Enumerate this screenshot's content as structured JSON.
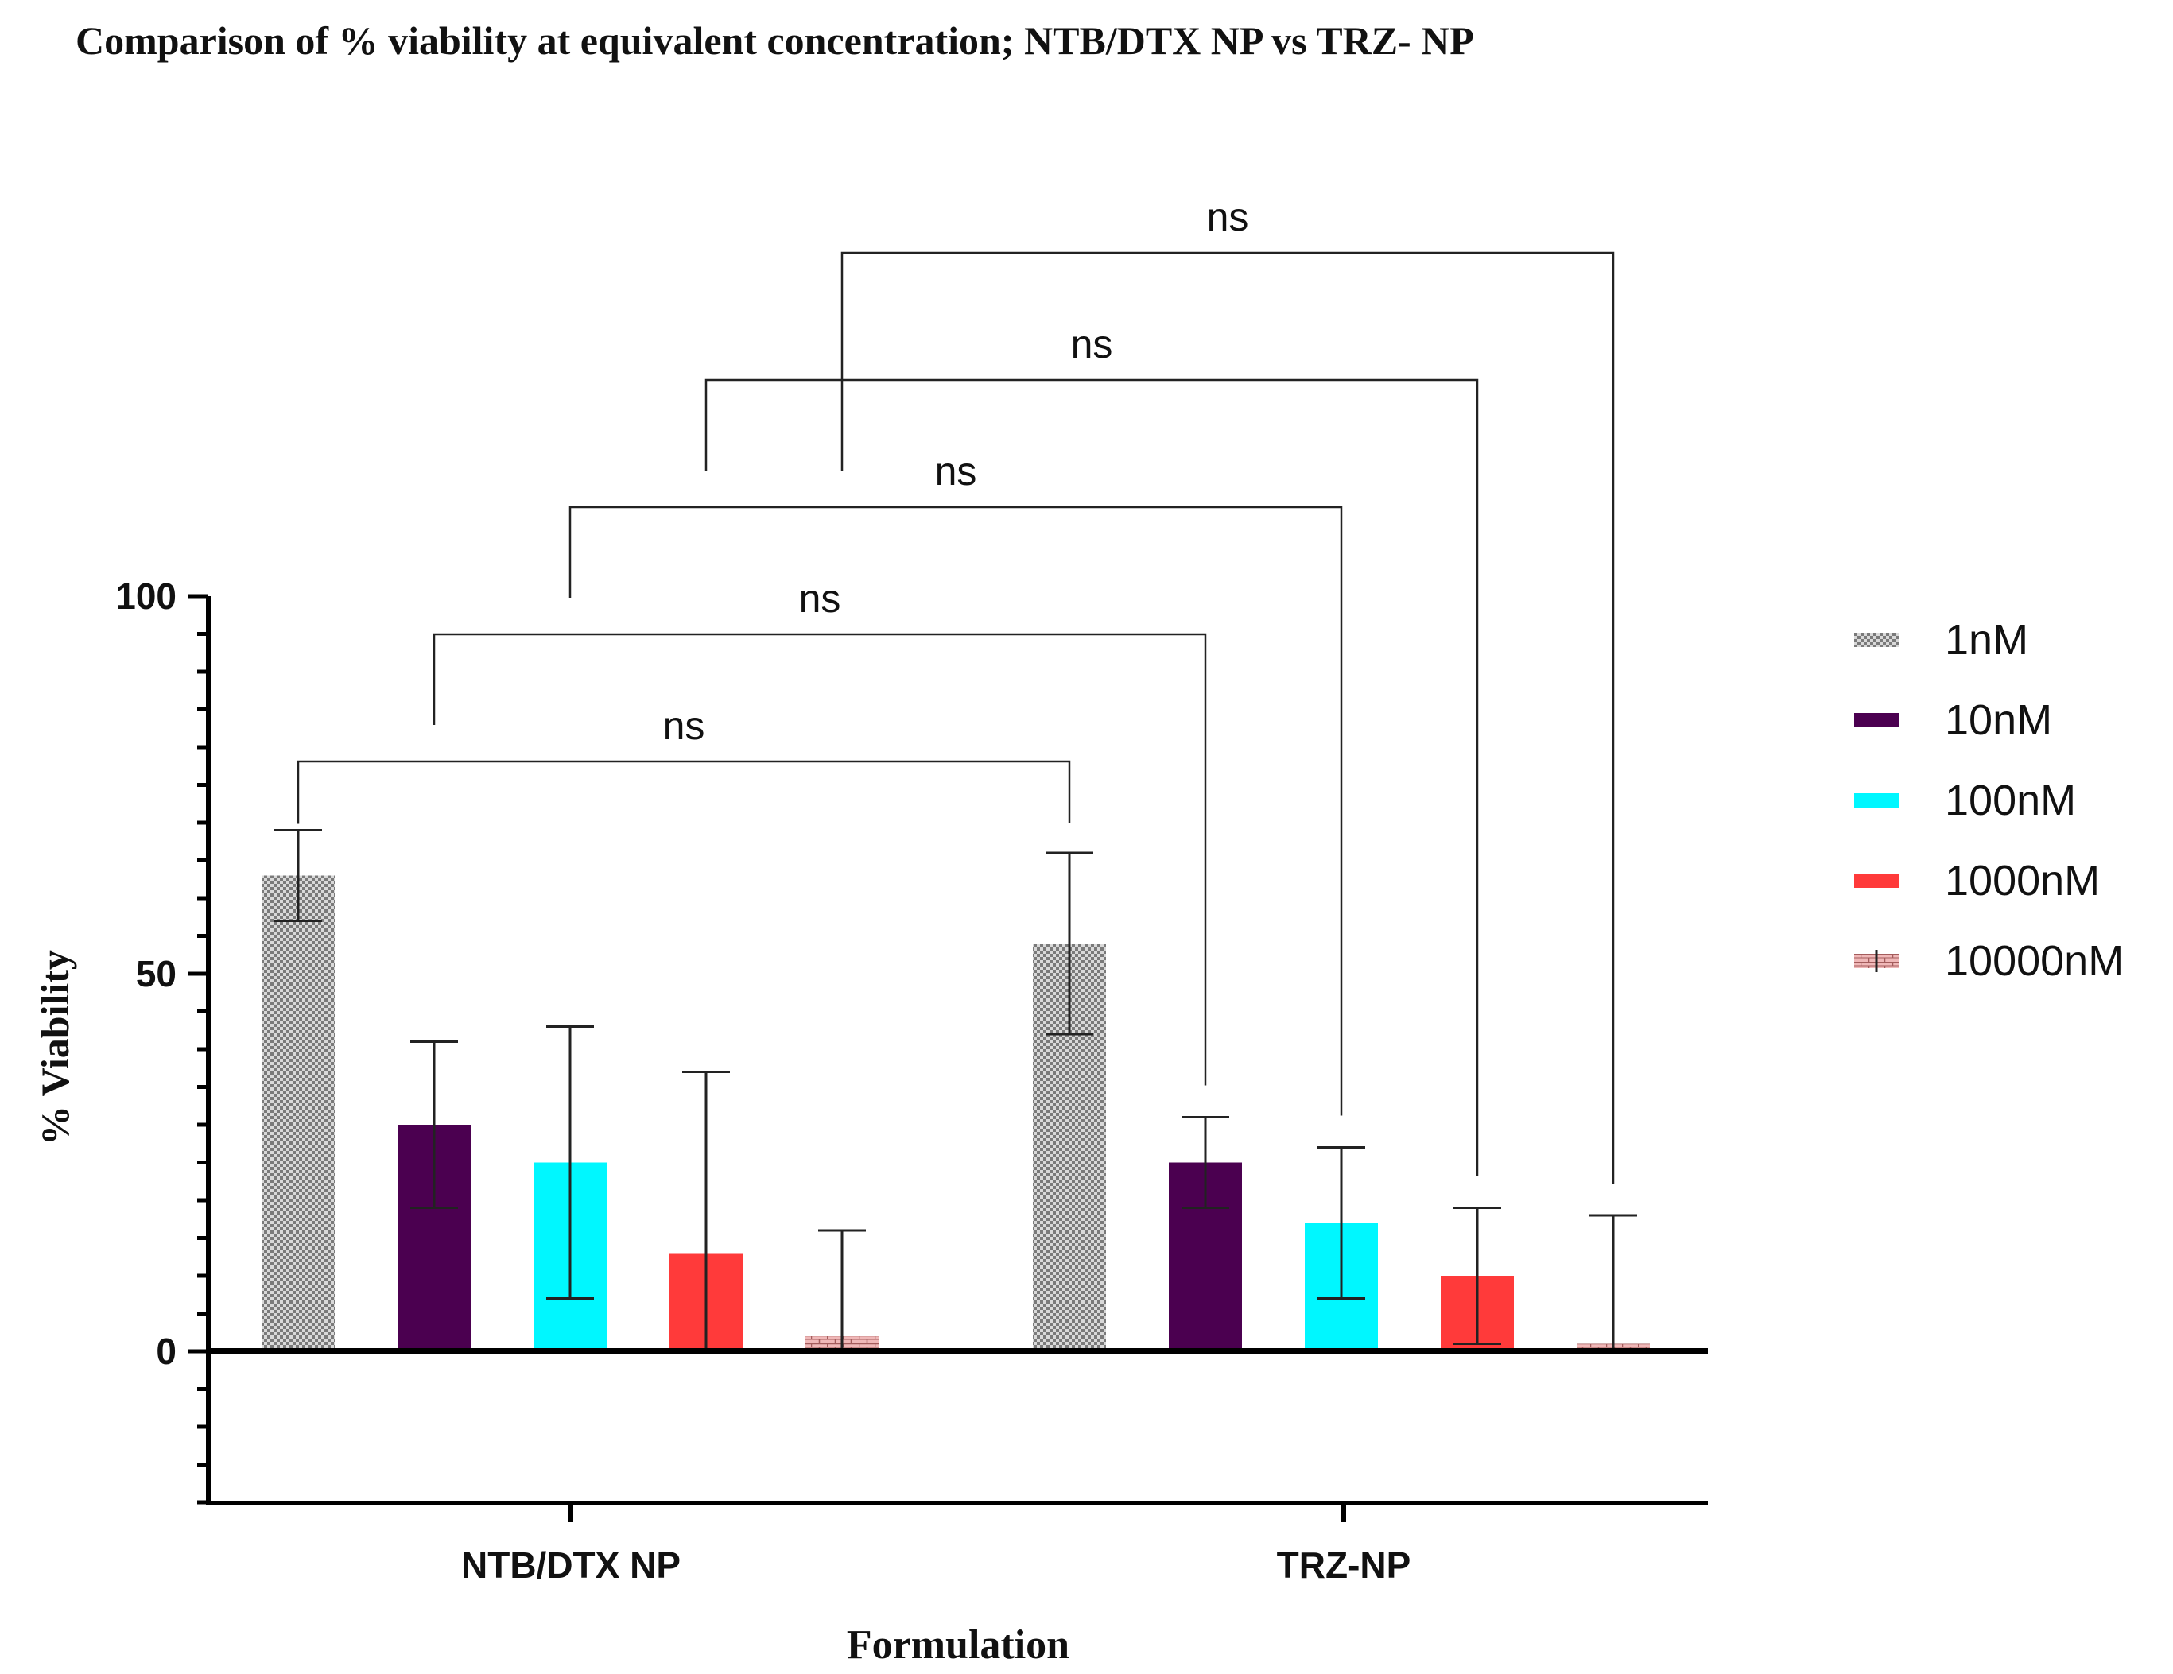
{
  "chart_data": {
    "type": "bar",
    "title": "Comparison of % viability at equivalent concentration; NTB/DTX NP vs TRZ- NP",
    "xlabel": "Formulation",
    "ylabel": "% Viability",
    "categories": [
      "NTB/DTX NP",
      "TRZ-NP"
    ],
    "ylim": [
      -20,
      100
    ],
    "yticks": [
      0,
      50,
      100
    ],
    "legend_position": "right",
    "series": [
      {
        "name": "1nM",
        "color": "#a0a0a0",
        "pattern": "checker",
        "values": [
          63,
          54
        ],
        "errors": [
          6,
          12
        ]
      },
      {
        "name": "10nM",
        "color": "#4b0050",
        "pattern": "solid",
        "values": [
          30,
          25
        ],
        "errors": [
          11,
          6
        ]
      },
      {
        "name": "100nM",
        "color": "#00f7ff",
        "pattern": "solid",
        "values": [
          25,
          17
        ],
        "errors": [
          18,
          10
        ]
      },
      {
        "name": "1000nM",
        "color": "#ff3a3a",
        "pattern": "solid",
        "values": [
          13,
          10
        ],
        "errors": [
          24,
          9
        ]
      },
      {
        "name": "10000nM",
        "color": "#e7a7a7",
        "pattern": "brick",
        "values": [
          2,
          1
        ],
        "errors": [
          14,
          17
        ]
      }
    ],
    "significance": [
      {
        "label": "ns",
        "from": [
          0,
          0
        ],
        "to": [
          1,
          0
        ]
      },
      {
        "label": "ns",
        "from": [
          0,
          1
        ],
        "to": [
          1,
          1
        ]
      },
      {
        "label": "ns",
        "from": [
          0,
          2
        ],
        "to": [
          1,
          2
        ]
      },
      {
        "label": "ns",
        "from": [
          0,
          3
        ],
        "to": [
          1,
          3
        ]
      },
      {
        "label": "ns",
        "from": [
          0,
          4
        ],
        "to": [
          1,
          4
        ]
      }
    ]
  }
}
